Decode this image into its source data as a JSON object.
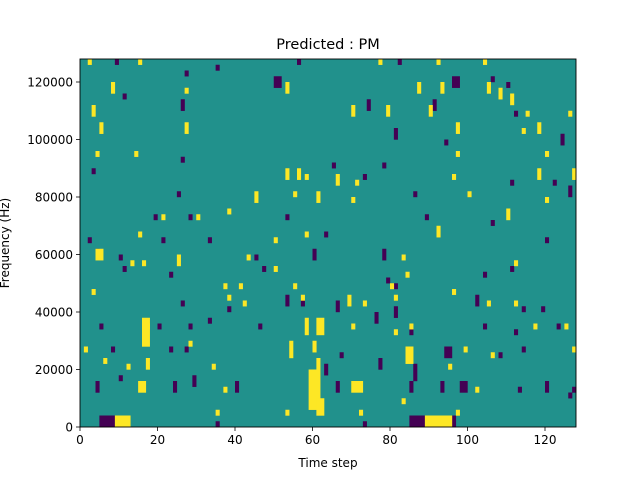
{
  "chart_data": {
    "type": "heatmap",
    "title": "Predicted : PM",
    "xlabel": "Time step",
    "ylabel": "Frequency (Hz)",
    "xlim": [
      0,
      128
    ],
    "ylim": [
      0,
      128000
    ],
    "n_time_steps": 128,
    "n_freq_bins": 64,
    "bin_hz": 2000,
    "xticks": [
      0,
      20,
      40,
      60,
      80,
      100,
      120
    ],
    "yticks": [
      0,
      20000,
      40000,
      60000,
      80000,
      100000,
      120000
    ],
    "colors": {
      "background": "#21918c",
      "high": "#fde725",
      "low": "#440154"
    },
    "background_value": 0,
    "cells_note": "each entry: [time_step, freq_bin, width_steps, height_bins]",
    "high_cells": [
      [
        2,
        63,
        1,
        1
      ],
      [
        15,
        63,
        1,
        1
      ],
      [
        77,
        63,
        1,
        1
      ],
      [
        92,
        63,
        1,
        1
      ],
      [
        104,
        63,
        1,
        1
      ],
      [
        8,
        58,
        1,
        2
      ],
      [
        27,
        58,
        1,
        1
      ],
      [
        53,
        58,
        1,
        2
      ],
      [
        87,
        58,
        1,
        2
      ],
      [
        93,
        58,
        1,
        2
      ],
      [
        105,
        58,
        1,
        2
      ],
      [
        108,
        57,
        1,
        2
      ],
      [
        111,
        56,
        1,
        2
      ],
      [
        3,
        54,
        1,
        2
      ],
      [
        70,
        54,
        1,
        2
      ],
      [
        79,
        54,
        1,
        2
      ],
      [
        90,
        54,
        1,
        2
      ],
      [
        115,
        54,
        1,
        1
      ],
      [
        126,
        54,
        1,
        1
      ],
      [
        5,
        51,
        1,
        2
      ],
      [
        27,
        51,
        1,
        2
      ],
      [
        97,
        51,
        1,
        2
      ],
      [
        114,
        51,
        1,
        1
      ],
      [
        118,
        51,
        1,
        2
      ],
      [
        4,
        47,
        1,
        1
      ],
      [
        14,
        47,
        1,
        1
      ],
      [
        120,
        47,
        1,
        1
      ],
      [
        97,
        47,
        1,
        1
      ],
      [
        53,
        43,
        1,
        2
      ],
      [
        56,
        43,
        1,
        2
      ],
      [
        58,
        43,
        1,
        1
      ],
      [
        66,
        42,
        1,
        2
      ],
      [
        71,
        42,
        1,
        1
      ],
      [
        96,
        43,
        1,
        1
      ],
      [
        118,
        43,
        1,
        2
      ],
      [
        127,
        43,
        1,
        2
      ],
      [
        45,
        39,
        1,
        2
      ],
      [
        55,
        40,
        1,
        1
      ],
      [
        61,
        39,
        1,
        2
      ],
      [
        70,
        39,
        1,
        1
      ],
      [
        100,
        40,
        1,
        1
      ],
      [
        120,
        39,
        1,
        1
      ],
      [
        21,
        36,
        1,
        1
      ],
      [
        30,
        36,
        1,
        1
      ],
      [
        38,
        37,
        1,
        1
      ],
      [
        110,
        36,
        1,
        2
      ],
      [
        15,
        33,
        1,
        1
      ],
      [
        50,
        32,
        1,
        1
      ],
      [
        58,
        33,
        1,
        1
      ],
      [
        92,
        33,
        1,
        2
      ],
      [
        4,
        29,
        2,
        2
      ],
      [
        13,
        28,
        1,
        1
      ],
      [
        16,
        28,
        1,
        1
      ],
      [
        25,
        28,
        1,
        2
      ],
      [
        43,
        29,
        1,
        1
      ],
      [
        50,
        27,
        1,
        1
      ],
      [
        83,
        29,
        1,
        1
      ],
      [
        112,
        28,
        1,
        1
      ],
      [
        3,
        23,
        1,
        1
      ],
      [
        37,
        24,
        1,
        1
      ],
      [
        41,
        24,
        1,
        1
      ],
      [
        55,
        24,
        1,
        1
      ],
      [
        80,
        24,
        1,
        1
      ],
      [
        84,
        26,
        1,
        1
      ],
      [
        96,
        23,
        1,
        1
      ],
      [
        38,
        22,
        1,
        1
      ],
      [
        42,
        21,
        1,
        1
      ],
      [
        57,
        22,
        1,
        1
      ],
      [
        69,
        21,
        1,
        2
      ],
      [
        73,
        21,
        1,
        1
      ],
      [
        81,
        22,
        1,
        1
      ],
      [
        105,
        21,
        1,
        1
      ],
      [
        112,
        21,
        1,
        1
      ],
      [
        16,
        17,
        2,
        2
      ],
      [
        58,
        16,
        1,
        3
      ],
      [
        61,
        16,
        2,
        3
      ],
      [
        70,
        17,
        1,
        1
      ],
      [
        81,
        16,
        1,
        1
      ],
      [
        85,
        17,
        1,
        1
      ],
      [
        117,
        17,
        1,
        1
      ],
      [
        125,
        17,
        1,
        1
      ],
      [
        1,
        13,
        1,
        1
      ],
      [
        16,
        14,
        2,
        4
      ],
      [
        28,
        14,
        1,
        1
      ],
      [
        54,
        12,
        1,
        3
      ],
      [
        60,
        13,
        1,
        2
      ],
      [
        84,
        11,
        2,
        3
      ],
      [
        99,
        13,
        1,
        1
      ],
      [
        106,
        12,
        1,
        1
      ],
      [
        127,
        13,
        1,
        1
      ],
      [
        6,
        11,
        1,
        1
      ],
      [
        12,
        10,
        1,
        1
      ],
      [
        17,
        10,
        1,
        2
      ],
      [
        34,
        10,
        1,
        1
      ],
      [
        61,
        10,
        1,
        2
      ],
      [
        95,
        10,
        1,
        1
      ],
      [
        15,
        6,
        2,
        2
      ],
      [
        37,
        6,
        1,
        1
      ],
      [
        59,
        3,
        3,
        7
      ],
      [
        61,
        2,
        2,
        3
      ],
      [
        70,
        6,
        3,
        2
      ],
      [
        102,
        6,
        1,
        1
      ],
      [
        83,
        4,
        1,
        1
      ],
      [
        9,
        0,
        4,
        2
      ],
      [
        89,
        0,
        7,
        2
      ],
      [
        35,
        2,
        1,
        1
      ],
      [
        53,
        2,
        1,
        1
      ],
      [
        72,
        2,
        1,
        1
      ],
      [
        97,
        2,
        1,
        1
      ]
    ],
    "low_cells": [
      [
        9,
        63,
        1,
        1
      ],
      [
        56,
        63,
        1,
        1
      ],
      [
        82,
        63,
        1,
        1
      ],
      [
        35,
        62,
        1,
        1
      ],
      [
        27,
        61,
        1,
        1
      ],
      [
        50,
        59,
        2,
        2
      ],
      [
        96,
        59,
        2,
        2
      ],
      [
        106,
        60,
        1,
        1
      ],
      [
        110,
        59,
        1,
        1
      ],
      [
        11,
        57,
        1,
        1
      ],
      [
        26,
        55,
        1,
        2
      ],
      [
        74,
        55,
        1,
        2
      ],
      [
        91,
        55,
        1,
        2
      ],
      [
        112,
        54,
        1,
        1
      ],
      [
        81,
        50,
        1,
        2
      ],
      [
        94,
        49,
        1,
        1
      ],
      [
        124,
        49,
        1,
        2
      ],
      [
        26,
        46,
        1,
        1
      ],
      [
        78,
        45,
        1,
        1
      ],
      [
        65,
        45,
        1,
        1
      ],
      [
        3,
        44,
        1,
        1
      ],
      [
        73,
        43,
        1,
        1
      ],
      [
        111,
        42,
        1,
        1
      ],
      [
        122,
        42,
        1,
        1
      ],
      [
        25,
        40,
        1,
        1
      ],
      [
        86,
        40,
        1,
        1
      ],
      [
        126,
        40,
        1,
        2
      ],
      [
        19,
        36,
        1,
        1
      ],
      [
        28,
        36,
        1,
        1
      ],
      [
        53,
        36,
        1,
        1
      ],
      [
        89,
        36,
        1,
        1
      ],
      [
        106,
        35,
        1,
        1
      ],
      [
        2,
        32,
        1,
        1
      ],
      [
        21,
        32,
        1,
        1
      ],
      [
        33,
        32,
        1,
        1
      ],
      [
        63,
        33,
        1,
        1
      ],
      [
        120,
        32,
        1,
        1
      ],
      [
        4,
        30,
        1,
        1
      ],
      [
        10,
        29,
        1,
        1
      ],
      [
        45,
        29,
        1,
        1
      ],
      [
        60,
        29,
        1,
        2
      ],
      [
        78,
        29,
        1,
        2
      ],
      [
        11,
        27,
        1,
        1
      ],
      [
        23,
        26,
        1,
        1
      ],
      [
        47,
        27,
        1,
        1
      ],
      [
        104,
        26,
        1,
        1
      ],
      [
        111,
        27,
        1,
        1
      ],
      [
        79,
        25,
        1,
        1
      ],
      [
        81,
        24,
        1,
        1
      ],
      [
        26,
        21,
        1,
        1
      ],
      [
        38,
        20,
        1,
        1
      ],
      [
        53,
        21,
        1,
        2
      ],
      [
        57,
        21,
        1,
        1
      ],
      [
        66,
        20,
        1,
        2
      ],
      [
        81,
        19,
        1,
        2
      ],
      [
        102,
        21,
        1,
        2
      ],
      [
        114,
        20,
        1,
        1
      ],
      [
        119,
        20,
        1,
        1
      ],
      [
        5,
        17,
        1,
        1
      ],
      [
        20,
        17,
        1,
        1
      ],
      [
        28,
        17,
        1,
        1
      ],
      [
        33,
        18,
        1,
        1
      ],
      [
        46,
        17,
        1,
        1
      ],
      [
        76,
        18,
        1,
        2
      ],
      [
        85,
        16,
        1,
        1
      ],
      [
        104,
        17,
        1,
        1
      ],
      [
        112,
        16,
        1,
        1
      ],
      [
        123,
        17,
        1,
        1
      ],
      [
        8,
        13,
        1,
        1
      ],
      [
        23,
        13,
        1,
        1
      ],
      [
        27,
        13,
        1,
        1
      ],
      [
        67,
        12,
        1,
        1
      ],
      [
        77,
        10,
        1,
        2
      ],
      [
        94,
        12,
        2,
        2
      ],
      [
        108,
        12,
        1,
        1
      ],
      [
        114,
        13,
        1,
        1
      ],
      [
        4,
        6,
        1,
        2
      ],
      [
        10,
        8,
        1,
        1
      ],
      [
        24,
        6,
        1,
        2
      ],
      [
        29,
        7,
        1,
        2
      ],
      [
        40,
        6,
        1,
        2
      ],
      [
        63,
        9,
        1,
        2
      ],
      [
        66,
        6,
        1,
        2
      ],
      [
        85,
        6,
        1,
        2
      ],
      [
        93,
        6,
        1,
        2
      ],
      [
        98,
        6,
        2,
        2
      ],
      [
        113,
        6,
        1,
        1
      ],
      [
        120,
        6,
        1,
        2
      ],
      [
        126,
        5,
        1,
        1
      ],
      [
        127,
        6,
        1,
        1
      ],
      [
        5,
        0,
        4,
        2
      ],
      [
        85,
        0,
        4,
        2
      ],
      [
        96,
        0,
        1,
        2
      ],
      [
        35,
        0,
        1,
        1
      ],
      [
        73,
        0,
        1,
        1
      ],
      [
        86,
        8,
        1,
        3
      ]
    ]
  }
}
